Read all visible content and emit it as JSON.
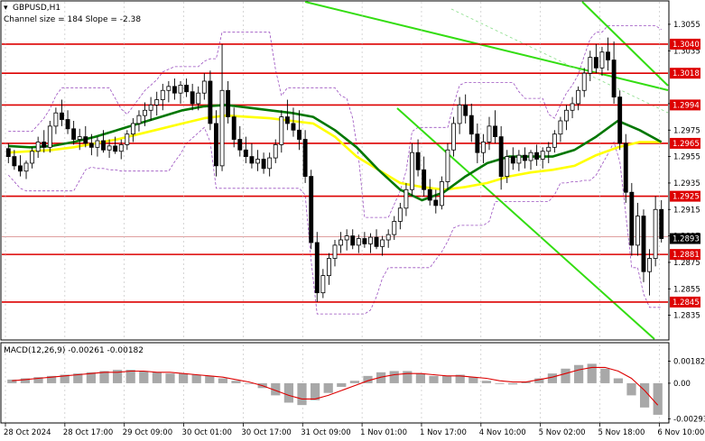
{
  "header": {
    "symbol": "GBPUSD,H1",
    "channel_info": "Channel size = 184  Slope = -2.38"
  },
  "colors": {
    "bull": "#000000",
    "bear": "#000000",
    "ma_fast": "#ffff00",
    "ma_slow": "#007700",
    "level": "#dd0000",
    "channel": "#33dd11",
    "channel_mid": "#88dd88",
    "envelope": "#9a4fbf",
    "macd_hist": "#a8a8a8",
    "macd_signal": "#dd0000"
  },
  "chart_data": [
    {
      "type": "candlestick",
      "title": "",
      "ylim": [
        1.2817,
        1.3072
      ],
      "y_ticks": [
        "1.3055",
        "1.3035",
        "1.2995",
        "1.2975",
        "1.2955",
        "1.2935",
        "1.2915",
        "1.2895",
        "1.2875",
        "1.2855",
        "1.2835"
      ],
      "x_ticks": [
        "28 Oct 2024",
        "28 Oct 17:00",
        "29 Oct 09:00",
        "30 Oct 01:00",
        "30 Oct 17:00",
        "31 Oct 09:00",
        "1 Nov 01:00",
        "1 Nov 17:00",
        "4 Nov 10:00",
        "5 Nov 02:00",
        "5 Nov 18:00",
        "6 Nov 10:00"
      ],
      "levels": [
        {
          "label": "1.3040",
          "value": 1.304
        },
        {
          "label": "1.3018",
          "value": 1.3018
        },
        {
          "label": "1.2994",
          "value": 1.2994
        },
        {
          "label": "1.2965",
          "value": 1.2965
        },
        {
          "label": "1.2925",
          "value": 1.2925
        },
        {
          "label": "1.2881",
          "value": 1.2881
        },
        {
          "label": "1.2845",
          "value": 1.2845
        }
      ],
      "current_price": {
        "label": "1.2893",
        "value": 1.2893
      },
      "candles_note": "OHLC per hourly bar, estimated from price axis",
      "candles": [
        [
          1.2961,
          1.2965,
          1.295,
          1.2955
        ],
        [
          1.2955,
          1.296,
          1.2945,
          1.2948
        ],
        [
          1.2948,
          1.2956,
          1.294,
          1.2944
        ],
        [
          1.2944,
          1.2952,
          1.2938,
          1.295
        ],
        [
          1.295,
          1.2962,
          1.2946,
          1.2959
        ],
        [
          1.2959,
          1.297,
          1.2954,
          1.2966
        ],
        [
          1.2966,
          1.2975,
          1.2958,
          1.2962
        ],
        [
          1.2962,
          1.2982,
          1.2958,
          1.2978
        ],
        [
          1.2978,
          1.2992,
          1.2972,
          1.2988
        ],
        [
          1.2988,
          1.2998,
          1.2978,
          1.2983
        ],
        [
          1.2983,
          1.299,
          1.2972,
          1.2976
        ],
        [
          1.2976,
          1.2982,
          1.2964,
          1.2968
        ],
        [
          1.2968,
          1.2976,
          1.296,
          1.297
        ],
        [
          1.297,
          1.2978,
          1.2962,
          1.2965
        ],
        [
          1.2965,
          1.2972,
          1.2956,
          1.2962
        ],
        [
          1.2962,
          1.297,
          1.2955,
          1.2967
        ],
        [
          1.2967,
          1.2975,
          1.2958,
          1.296
        ],
        [
          1.296,
          1.2968,
          1.2954,
          1.2963
        ],
        [
          1.2963,
          1.297,
          1.2957,
          1.2959
        ],
        [
          1.2959,
          1.2968,
          1.2953,
          1.2964
        ],
        [
          1.2964,
          1.2975,
          1.296,
          1.2972
        ],
        [
          1.2972,
          1.2984,
          1.2966,
          1.298
        ],
        [
          1.298,
          1.299,
          1.2974,
          1.2986
        ],
        [
          1.2986,
          1.2996,
          1.2978,
          1.299
        ],
        [
          1.299,
          1.3,
          1.2982,
          1.2994
        ],
        [
          1.2994,
          1.3004,
          1.2986,
          1.2998
        ],
        [
          1.2998,
          1.301,
          1.299,
          1.3005
        ],
        [
          1.3005,
          1.3012,
          1.2996,
          1.3008
        ],
        [
          1.3008,
          1.3014,
          1.2998,
          1.3003
        ],
        [
          1.3003,
          1.3012,
          1.2995,
          1.3009
        ],
        [
          1.3009,
          1.3014,
          1.3,
          1.3004
        ],
        [
          1.3004,
          1.301,
          1.299,
          1.2995
        ],
        [
          1.2995,
          1.3008,
          1.299,
          1.3003
        ],
        [
          1.3003,
          1.3018,
          1.2998,
          1.3012
        ],
        [
          1.3012,
          1.302,
          1.2975,
          1.298
        ],
        [
          1.298,
          1.299,
          1.294,
          1.2948
        ],
        [
          1.2948,
          1.304,
          1.2944,
          1.3005
        ],
        [
          1.3005,
          1.3012,
          1.298,
          1.2985
        ],
        [
          1.2985,
          1.2992,
          1.2962,
          1.2968
        ],
        [
          1.2968,
          1.2978,
          1.2955,
          1.296
        ],
        [
          1.296,
          1.297,
          1.295,
          1.2955
        ],
        [
          1.2955,
          1.2965,
          1.2946,
          1.295
        ],
        [
          1.295,
          1.296,
          1.2944,
          1.2953
        ],
        [
          1.2953,
          1.2958,
          1.2942,
          1.2946
        ],
        [
          1.2946,
          1.2958,
          1.294,
          1.2954
        ],
        [
          1.2954,
          1.2968,
          1.295,
          1.2964
        ],
        [
          1.2964,
          1.299,
          1.2958,
          1.2985
        ],
        [
          1.2985,
          1.2998,
          1.2975,
          1.298
        ],
        [
          1.298,
          1.2992,
          1.297,
          1.2975
        ],
        [
          1.2975,
          1.299,
          1.296,
          1.2968
        ],
        [
          1.2968,
          1.2975,
          1.2935,
          1.294
        ],
        [
          1.294,
          1.2945,
          1.2885,
          1.289
        ],
        [
          1.289,
          1.2898,
          1.2845,
          1.2852
        ],
        [
          1.2852,
          1.287,
          1.2848,
          1.2865
        ],
        [
          1.2865,
          1.2882,
          1.2858,
          1.2878
        ],
        [
          1.2878,
          1.2892,
          1.2872,
          1.2888
        ],
        [
          1.2888,
          1.2898,
          1.2882,
          1.2892
        ],
        [
          1.2892,
          1.29,
          1.2884,
          1.2895
        ],
        [
          1.2895,
          1.29,
          1.2885,
          1.2888
        ],
        [
          1.2888,
          1.2896,
          1.2882,
          1.2893
        ],
        [
          1.2893,
          1.2898,
          1.2886,
          1.2889
        ],
        [
          1.2889,
          1.2897,
          1.2882,
          1.2894
        ],
        [
          1.2894,
          1.29,
          1.2885,
          1.2887
        ],
        [
          1.2887,
          1.2895,
          1.288,
          1.2892
        ],
        [
          1.2892,
          1.29,
          1.2886,
          1.2896
        ],
        [
          1.2896,
          1.291,
          1.2892,
          1.2906
        ],
        [
          1.2906,
          1.292,
          1.29,
          1.2916
        ],
        [
          1.2916,
          1.2935,
          1.291,
          1.293
        ],
        [
          1.293,
          1.2965,
          1.2925,
          1.2958
        ],
        [
          1.2958,
          1.2968,
          1.294,
          1.2945
        ],
        [
          1.2945,
          1.2955,
          1.2925,
          1.293
        ],
        [
          1.293,
          1.2938,
          1.2918,
          1.2922
        ],
        [
          1.2922,
          1.293,
          1.2912,
          1.2918
        ],
        [
          1.2918,
          1.294,
          1.2915,
          1.2936
        ],
        [
          1.2936,
          1.2965,
          1.293,
          1.296
        ],
        [
          1.296,
          1.2985,
          1.2955,
          1.298
        ],
        [
          1.298,
          1.3,
          1.2972,
          1.2994
        ],
        [
          1.2994,
          1.3002,
          1.298,
          1.2986
        ],
        [
          1.2986,
          1.2995,
          1.2966,
          1.2972
        ],
        [
          1.2972,
          1.298,
          1.295,
          1.2958
        ],
        [
          1.2958,
          1.2972,
          1.295,
          1.2966
        ],
        [
          1.2966,
          1.2985,
          1.296,
          1.2978
        ],
        [
          1.2978,
          1.299,
          1.2965,
          1.297
        ],
        [
          1.297,
          1.2978,
          1.293,
          1.294
        ],
        [
          1.294,
          1.296,
          1.2935,
          1.2955
        ],
        [
          1.2955,
          1.2962,
          1.2945,
          1.295
        ],
        [
          1.295,
          1.296,
          1.2944,
          1.2956
        ],
        [
          1.2956,
          1.2962,
          1.2946,
          1.2952
        ],
        [
          1.2952,
          1.296,
          1.2945,
          1.2958
        ],
        [
          1.2958,
          1.2964,
          1.2948,
          1.2953
        ],
        [
          1.2953,
          1.2962,
          1.2946,
          1.2959
        ],
        [
          1.2959,
          1.2966,
          1.295,
          1.2962
        ],
        [
          1.2962,
          1.2975,
          1.2958,
          1.2972
        ],
        [
          1.2972,
          1.2985,
          1.2966,
          1.2982
        ],
        [
          1.2982,
          1.2994,
          1.2975,
          1.299
        ],
        [
          1.299,
          1.3,
          1.2984,
          1.2995
        ],
        [
          1.2995,
          1.3008,
          1.299,
          1.3005
        ],
        [
          1.3005,
          1.3022,
          1.3,
          1.3018
        ],
        [
          1.3018,
          1.3035,
          1.3012,
          1.303
        ],
        [
          1.303,
          1.304,
          1.3018,
          1.3022
        ],
        [
          1.3022,
          1.3038,
          1.3016,
          1.3034
        ],
        [
          1.3034,
          1.3045,
          1.302,
          1.3028
        ],
        [
          1.3028,
          1.3042,
          1.2995,
          1.3
        ],
        [
          1.3,
          1.3005,
          1.296,
          1.2965
        ],
        [
          1.2965,
          1.2972,
          1.292,
          1.2928
        ],
        [
          1.2928,
          1.2935,
          1.288,
          1.2888
        ],
        [
          1.2888,
          1.292,
          1.288,
          1.291
        ],
        [
          1.291,
          1.2915,
          1.286,
          1.2868
        ],
        [
          1.2868,
          1.2885,
          1.285,
          1.2878
        ],
        [
          1.2878,
          1.2925,
          1.2872,
          1.2915
        ],
        [
          1.2915,
          1.2922,
          1.289,
          1.2893
        ]
      ],
      "ma_fast": [
        1.2958,
        1.2959,
        1.296,
        1.2962,
        1.2965,
        1.2968,
        1.2972,
        1.2976,
        1.298,
        1.2984,
        1.2986,
        1.2985,
        1.2984,
        1.2982,
        1.298,
        1.297,
        1.2955,
        1.2945,
        1.2935,
        1.2932,
        1.293,
        1.2932,
        1.2935,
        1.294,
        1.2943,
        1.2945,
        1.2948,
        1.2956,
        1.2962,
        1.2966,
        1.2966
      ],
      "ma_slow": [
        1.2963,
        1.2962,
        1.2963,
        1.2966,
        1.297,
        1.2975,
        1.298,
        1.2985,
        1.299,
        1.2993,
        1.2994,
        1.2992,
        1.299,
        1.2988,
        1.2985,
        1.2975,
        1.2962,
        1.2945,
        1.293,
        1.2922,
        1.2928,
        1.294,
        1.295,
        1.2955,
        1.2955,
        1.2955,
        1.296,
        1.297,
        1.2982,
        1.2975,
        1.2966
      ]
    },
    {
      "type": "macd",
      "title": "MACD(12,26,9) -0.00261 -0.00182",
      "ylim": [
        -0.0032,
        0.002
      ],
      "y_ticks": [
        "0.00182",
        "0.00",
        "-0.00293"
      ],
      "histogram": [
        0.0003,
        0.0004,
        0.0005,
        0.0006,
        0.0007,
        0.0008,
        0.0009,
        0.001,
        0.0011,
        0.0011,
        0.001,
        0.0009,
        0.0008,
        0.0008,
        0.0007,
        0.0006,
        0.0004,
        0.0002,
        0.0,
        -0.0004,
        -0.001,
        -0.0016,
        -0.0018,
        -0.0014,
        -0.0008,
        -0.0003,
        0.0002,
        0.0006,
        0.0009,
        0.001,
        0.001,
        0.0008,
        0.0006,
        0.0006,
        0.0007,
        0.0005,
        0.0002,
        0.0,
        -0.0001,
        0.0001,
        0.0004,
        0.0008,
        0.0012,
        0.0015,
        0.0016,
        0.0012,
        0.0004,
        -0.001,
        -0.002,
        -0.0026
      ],
      "signal": [
        0.0002,
        0.0003,
        0.0004,
        0.0005,
        0.0006,
        0.0007,
        0.0008,
        0.0009,
        0.0009,
        0.001,
        0.001,
        0.0009,
        0.0009,
        0.0008,
        0.0007,
        0.0006,
        0.0005,
        0.0003,
        0.0001,
        -0.0002,
        -0.0006,
        -0.001,
        -0.0013,
        -0.0013,
        -0.001,
        -0.0006,
        -0.0002,
        0.0002,
        0.0005,
        0.0007,
        0.0008,
        0.0008,
        0.0007,
        0.0006,
        0.0006,
        0.0005,
        0.0004,
        0.0002,
        0.0001,
        0.0001,
        0.0003,
        0.0005,
        0.0008,
        0.0011,
        0.0013,
        0.0013,
        0.001,
        0.0004,
        -0.0006,
        -0.0018
      ]
    }
  ]
}
